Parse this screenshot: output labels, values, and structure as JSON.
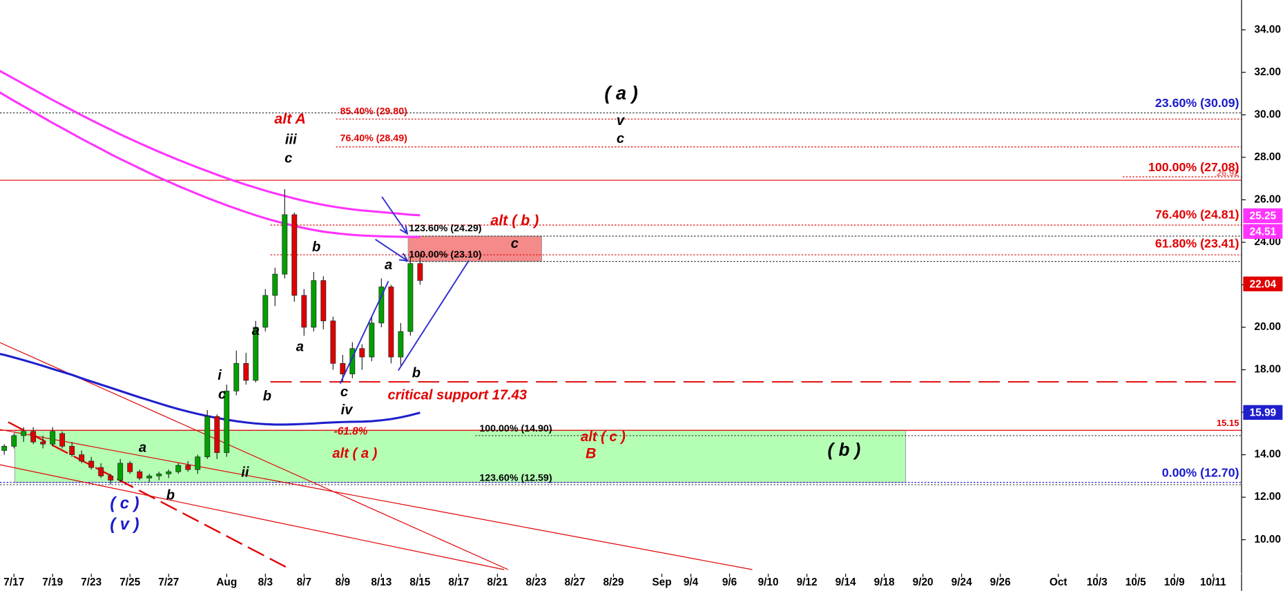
{
  "chart_data": {
    "type": "candlestick",
    "categories": [
      null,
      null,
      "7/17",
      null,
      null,
      null,
      "7/19",
      null,
      null,
      null,
      "7/23",
      null,
      null,
      null,
      "7/25",
      null,
      null,
      null,
      "7/27",
      null,
      null,
      null,
      null,
      null,
      "Aug",
      null,
      null,
      null,
      "8/3",
      null,
      null,
      null,
      "8/7",
      null,
      null,
      null,
      "8/9",
      null,
      null,
      null,
      "8/13",
      null,
      null,
      null,
      "8/15",
      null,
      null,
      null,
      "8/17",
      null,
      null,
      null,
      "8/21",
      null,
      null,
      null,
      "8/23",
      null,
      null,
      null,
      "8/27",
      null,
      null,
      null,
      "8/29",
      null,
      null,
      null,
      null,
      "Sep",
      null,
      null,
      "9/4",
      null,
      null,
      null,
      "9/6",
      null,
      null,
      null,
      "9/10",
      null,
      null,
      null,
      "9/12",
      null,
      null,
      null,
      "9/14",
      null,
      null,
      null,
      "9/18",
      null,
      null,
      null,
      "9/20",
      null,
      null,
      null,
      "9/24",
      null,
      null,
      null,
      "9/26",
      null,
      null,
      null,
      null,
      null,
      "Oct",
      null,
      null,
      null,
      "10/3",
      null,
      null,
      null,
      "10/5",
      null,
      null,
      null,
      "10/9",
      null,
      null,
      null,
      "10/11",
      null
    ],
    "ohlc": [
      [
        14.0,
        14.3,
        13.9,
        14.2
      ],
      [
        14.2,
        14.5,
        14.0,
        14.4
      ],
      [
        14.4,
        15.0,
        14.3,
        14.9
      ],
      [
        14.9,
        15.3,
        14.6,
        15.1
      ],
      [
        15.1,
        15.3,
        14.5,
        14.6
      ],
      [
        14.6,
        14.9,
        14.3,
        14.5
      ],
      [
        14.5,
        15.3,
        14.4,
        15.1
      ],
      [
        15.0,
        15.1,
        14.3,
        14.4
      ],
      [
        14.4,
        14.6,
        13.9,
        14.0
      ],
      [
        14.0,
        14.2,
        13.6,
        13.7
      ],
      [
        13.7,
        13.9,
        13.3,
        13.4
      ],
      [
        13.4,
        13.6,
        12.9,
        13.0
      ],
      [
        13.0,
        13.1,
        12.6,
        12.8
      ],
      [
        12.8,
        13.8,
        12.7,
        13.6
      ],
      [
        13.6,
        13.7,
        13.1,
        13.2
      ],
      [
        13.2,
        13.3,
        12.8,
        12.9
      ],
      [
        12.9,
        13.1,
        12.7,
        13.0
      ],
      [
        13.0,
        13.2,
        12.8,
        13.1
      ],
      [
        13.1,
        13.3,
        12.9,
        13.2
      ],
      [
        13.2,
        13.6,
        13.1,
        13.5
      ],
      [
        13.5,
        13.7,
        13.2,
        13.3
      ],
      [
        13.3,
        14.0,
        13.1,
        13.9
      ],
      [
        13.9,
        16.1,
        13.8,
        15.8
      ],
      [
        15.8,
        15.9,
        13.8,
        14.1
      ],
      [
        14.1,
        17.3,
        13.9,
        17.0
      ],
      [
        17.0,
        18.9,
        16.8,
        18.3
      ],
      [
        18.3,
        18.8,
        17.3,
        17.5
      ],
      [
        17.5,
        20.3,
        17.4,
        20.0
      ],
      [
        20.0,
        21.8,
        19.8,
        21.5
      ],
      [
        21.5,
        22.8,
        21.0,
        22.5
      ],
      [
        22.5,
        26.5,
        22.3,
        25.3
      ],
      [
        25.3,
        25.4,
        21.2,
        21.5
      ],
      [
        21.5,
        21.8,
        19.6,
        20.0
      ],
      [
        20.0,
        22.6,
        19.8,
        22.2
      ],
      [
        22.2,
        22.4,
        19.9,
        20.3
      ],
      [
        20.3,
        20.5,
        18.0,
        18.3
      ],
      [
        18.3,
        18.7,
        17.4,
        17.8
      ],
      [
        17.8,
        19.3,
        17.6,
        19.0
      ],
      [
        19.0,
        19.2,
        18.0,
        18.6
      ],
      [
        18.6,
        20.5,
        18.4,
        20.2
      ],
      [
        20.2,
        22.3,
        20.0,
        21.9
      ],
      [
        21.9,
        22.0,
        18.3,
        18.6
      ],
      [
        18.6,
        20.2,
        18.2,
        19.8
      ],
      [
        19.8,
        23.3,
        19.6,
        23.0
      ],
      [
        23.0,
        23.4,
        22.0,
        22.2
      ],
      null,
      null,
      null,
      null,
      null,
      null,
      null,
      null,
      null,
      null,
      null,
      null,
      null,
      null,
      null,
      null,
      null,
      null,
      null,
      null,
      null,
      null,
      null,
      null,
      null,
      null,
      null,
      null,
      null,
      null,
      null,
      null,
      null,
      null,
      null,
      null,
      null,
      null,
      null,
      null,
      null,
      null,
      null,
      null,
      null,
      null,
      null,
      null,
      null,
      null,
      null,
      null,
      null,
      null,
      null,
      null,
      null,
      null,
      null,
      null,
      null,
      null,
      null,
      null,
      null,
      null,
      null,
      null,
      null,
      null,
      null,
      null,
      null,
      null,
      null,
      null,
      null,
      null,
      null,
      null,
      null,
      null,
      null
    ],
    "up_color": "#00a000",
    "down_color": "#e00000",
    "moving_averages": [
      {
        "color": "#ff33ff",
        "values": [
          32.2,
          31.95,
          31.7,
          31.45,
          31.2,
          30.95,
          30.7,
          30.46,
          30.22,
          29.98,
          29.75,
          29.52,
          29.3,
          29.08,
          28.87,
          28.66,
          28.46,
          28.26,
          28.07,
          27.88,
          27.7,
          27.52,
          27.35,
          27.18,
          27.02,
          26.86,
          26.71,
          26.57,
          26.43,
          26.3,
          26.18,
          26.06,
          25.95,
          25.85,
          25.76,
          25.68,
          25.61,
          25.55,
          25.5,
          25.46,
          25.42,
          25.38,
          25.34,
          25.3,
          25.27,
          null,
          null,
          null,
          null,
          null,
          null,
          null,
          null,
          null,
          null,
          null,
          null,
          null,
          null,
          null,
          null,
          null,
          null,
          null,
          null,
          null,
          null,
          null,
          null,
          null,
          null,
          null,
          null,
          null,
          null,
          null,
          null,
          null,
          null,
          null,
          null,
          null,
          null,
          null,
          null,
          null,
          null,
          null,
          null,
          null,
          null,
          null,
          null,
          null,
          null,
          null,
          null,
          null,
          null,
          null,
          null,
          null,
          null,
          null,
          null,
          null,
          null,
          null,
          null,
          null,
          null,
          null,
          null,
          null,
          null,
          null,
          null,
          null,
          null,
          null,
          null,
          null,
          null,
          null,
          null,
          null,
          null,
          null
        ]
      },
      {
        "color": "#ff33ff",
        "values": [
          31.2,
          30.93,
          30.66,
          30.4,
          30.14,
          29.88,
          29.62,
          29.37,
          29.12,
          28.87,
          28.63,
          28.39,
          28.15,
          27.92,
          27.7,
          27.48,
          27.26,
          27.05,
          26.85,
          26.65,
          26.46,
          26.27,
          26.09,
          25.91,
          25.74,
          25.58,
          25.42,
          25.27,
          25.13,
          25.0,
          24.88,
          24.77,
          24.67,
          24.58,
          24.5,
          24.44,
          24.39,
          24.35,
          24.32,
          24.3,
          24.28,
          24.27,
          24.26,
          24.25,
          24.25,
          null,
          null,
          null,
          null,
          null,
          null,
          null,
          null,
          null,
          null,
          null,
          null,
          null,
          null,
          null,
          null,
          null,
          null,
          null,
          null,
          null,
          null,
          null,
          null,
          null,
          null,
          null,
          null,
          null,
          null,
          null,
          null,
          null,
          null,
          null,
          null,
          null,
          null,
          null,
          null,
          null,
          null,
          null,
          null,
          null,
          null,
          null,
          null,
          null,
          null,
          null,
          null,
          null,
          null,
          null,
          null,
          null,
          null,
          null,
          null,
          null,
          null,
          null,
          null,
          null,
          null,
          null,
          null,
          null,
          null,
          null,
          null,
          null,
          null,
          null,
          null,
          null,
          null,
          null,
          null,
          null,
          null,
          null
        ]
      },
      {
        "color": "#1f1fcc",
        "values": [
          18.8,
          18.7,
          18.58,
          18.45,
          18.32,
          18.18,
          18.04,
          17.9,
          17.76,
          17.6,
          17.45,
          17.3,
          17.15,
          17.0,
          16.85,
          16.7,
          16.56,
          16.42,
          16.28,
          16.15,
          16.03,
          15.92,
          15.82,
          15.73,
          15.65,
          15.58,
          15.52,
          15.47,
          15.44,
          15.42,
          15.42,
          15.43,
          15.45,
          15.47,
          15.5,
          15.52,
          15.54,
          15.55,
          15.56,
          15.58,
          15.62,
          15.68,
          15.76,
          15.86,
          15.98,
          null,
          null,
          null,
          null,
          null,
          null,
          null,
          null,
          null,
          null,
          null,
          null,
          null,
          null,
          null,
          null,
          null,
          null,
          null,
          null,
          null,
          null,
          null,
          null,
          null,
          null,
          null,
          null,
          null,
          null,
          null,
          null,
          null,
          null,
          null,
          null,
          null,
          null,
          null,
          null,
          null,
          null,
          null,
          null,
          null,
          null,
          null,
          null,
          null,
          null,
          null,
          null,
          null,
          null,
          null,
          null,
          null,
          null,
          null,
          null,
          null,
          null,
          null,
          null,
          null,
          null,
          null,
          null,
          null,
          null,
          null,
          null,
          null,
          null,
          null,
          null,
          null,
          null,
          null,
          null,
          null,
          null,
          null
        ]
      }
    ],
    "ylim": [
      8.4,
      35.4
    ],
    "yticks": [
      {
        "value": 10,
        "label": "10.00"
      },
      {
        "value": 12,
        "label": "12.00"
      },
      {
        "value": 14,
        "label": "14.00"
      },
      {
        "value": 16,
        "label": "16.00"
      },
      {
        "value": 18,
        "label": "18.00"
      },
      {
        "value": 20,
        "label": "20.00"
      },
      {
        "value": 22,
        "label": "22.00"
      },
      {
        "value": 24,
        "label": "24.00"
      },
      {
        "value": 26,
        "label": "26.00"
      },
      {
        "value": 28,
        "label": "28.00"
      },
      {
        "value": 30,
        "label": "30.00"
      },
      {
        "value": 32,
        "label": "32.00"
      },
      {
        "value": 34,
        "label": "34.00"
      }
    ],
    "zones": [
      {
        "low": 12.7,
        "high": 15.15,
        "color": "#b5ffb5"
      },
      {
        "low": 23.1,
        "high": 24.29,
        "color": "#f58a8a"
      }
    ],
    "levels": [
      {
        "value": 30.09,
        "label": "23.60% (30.09)",
        "label_color": "#1a1acc",
        "line_color": "#333333",
        "style": "dotted"
      },
      {
        "value": 29.8,
        "label": "85.40% (29.80)",
        "label_color": "#e00000",
        "line_color": "#e00000",
        "style": "dotted"
      },
      {
        "value": 28.49,
        "label": "76.40% (28.49)",
        "label_color": "#e00000",
        "line_color": "#e00000",
        "style": "dotted"
      },
      {
        "value": 26.92,
        "label": "26.92",
        "label_color": "#e07070",
        "line_color": "#e00000",
        "style": "solid"
      },
      {
        "value": 27.08,
        "label": "100.00% (27.08)",
        "label_color": "#e00000",
        "line_color": "#e00000",
        "style": "dotted"
      },
      {
        "value": 24.81,
        "label": "76.40% (24.81)",
        "label_color": "#e00000",
        "line_color": "#e00000",
        "style": "dotted"
      },
      {
        "value": 24.29,
        "label": "123.60% (24.29)",
        "label_color": "#000000",
        "line_color": "#333333",
        "style": "dotted"
      },
      {
        "value": 23.41,
        "label": "61.80% (23.41)",
        "label_color": "#e00000",
        "line_color": "#e00000",
        "style": "dotted"
      },
      {
        "value": 23.1,
        "label": "100.00% (23.10)",
        "label_color": "#000000",
        "line_color": "#333333",
        "style": "dotted"
      },
      {
        "value": 17.43,
        "label": "critical support 17.43",
        "label_color": "#e00000",
        "line_color": "#e00000",
        "style": "dashed"
      },
      {
        "value": 15.15,
        "label": "15.15",
        "label_color": "#e00000",
        "line_color": "#e00000",
        "style": "solid"
      },
      {
        "value": 14.9,
        "label": "100.00% (14.90)",
        "label_color": "#000000",
        "line_color": "#333333",
        "style": "dotted"
      },
      {
        "value": 12.7,
        "label": "0.00% (12.70)",
        "label_color": "#1a1acc",
        "line_color": "#1a1acc",
        "style": "dotted"
      },
      {
        "value": 12.59,
        "label": "123.60% (12.59)",
        "label_color": "#000000",
        "line_color": "#555555",
        "style": "dotted"
      }
    ],
    "price_tags": [
      {
        "value": 25.25,
        "color": "#ff33ff"
      },
      {
        "value": 24.51,
        "color": "#ff33ff"
      },
      {
        "value": 22.04,
        "color": "#e00000"
      },
      {
        "value": 15.99,
        "color": "#1f1fcc"
      }
    ],
    "annotations": [
      {
        "text": "( a )",
        "color": "#000000"
      },
      {
        "text": "v",
        "color": "#000000"
      },
      {
        "text": "c",
        "color": "#000000"
      },
      {
        "text": "alt A",
        "color": "#e00000"
      },
      {
        "text": "iii",
        "color": "#000000"
      },
      {
        "text": "c",
        "color": "#000000"
      },
      {
        "text": "b",
        "color": "#000000"
      },
      {
        "text": "a",
        "color": "#000000"
      },
      {
        "text": "a",
        "color": "#000000"
      },
      {
        "text": "a",
        "color": "#000000"
      },
      {
        "text": "i",
        "color": "#000000"
      },
      {
        "text": "c",
        "color": "#000000"
      },
      {
        "text": "b",
        "color": "#000000"
      },
      {
        "text": "c",
        "color": "#000000"
      },
      {
        "text": "iv",
        "color": "#000000"
      },
      {
        "text": "b",
        "color": "#000000"
      },
      {
        "text": "ii",
        "color": "#000000"
      },
      {
        "text": "a",
        "color": "#000000"
      },
      {
        "text": "b",
        "color": "#000000"
      },
      {
        "text": "( c )",
        "color": "#1a1acc"
      },
      {
        "text": "( v )",
        "color": "#1a1acc"
      },
      {
        "text": "alt ( b )",
        "color": "#e00000"
      },
      {
        "text": "c",
        "color": "#000000"
      },
      {
        "text": "-61.8%",
        "color": "#e00000"
      },
      {
        "text": "alt ( a )",
        "color": "#e00000"
      },
      {
        "text": "alt ( c )",
        "color": "#e00000"
      },
      {
        "text": "B",
        "color": "#e00000"
      },
      {
        "text": "( b )",
        "color": "#000000"
      }
    ]
  }
}
